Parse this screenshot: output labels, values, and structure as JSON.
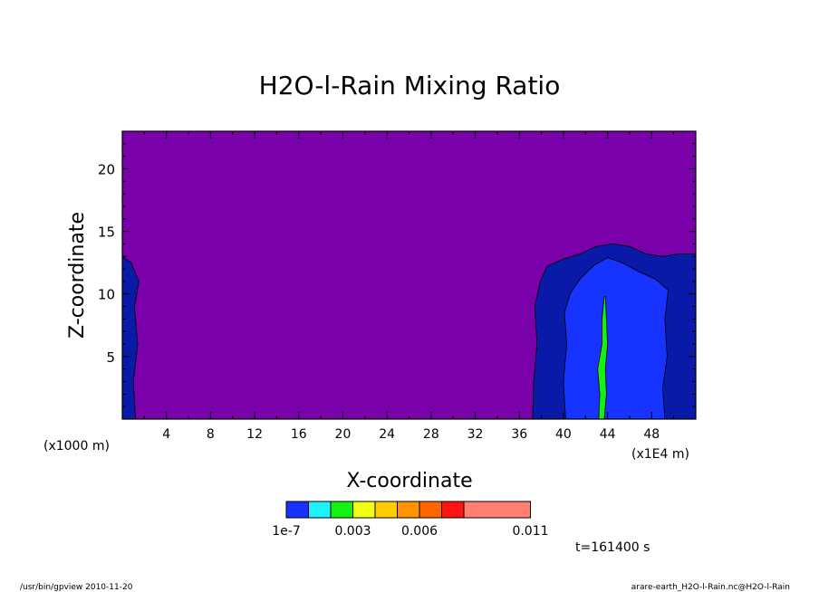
{
  "chart_data": {
    "type": "heatmap",
    "title": "H2O-l-Rain Mixing Ratio",
    "xlabel": "X-coordinate",
    "ylabel": "Z-coordinate",
    "x_unit_label": "(x1E4 m)",
    "y_unit_label": "(x1000 m)",
    "xlim": [
      0,
      52
    ],
    "ylim": [
      0,
      23
    ],
    "x_ticks": [
      4,
      8,
      12,
      16,
      20,
      24,
      28,
      32,
      36,
      40,
      44,
      48
    ],
    "y_ticks": [
      5,
      10,
      15,
      20
    ],
    "time_label": "t=161400 s",
    "colorbar": {
      "colors": [
        "#1733ff",
        "#1ff2ff",
        "#14f214",
        "#f2ff14",
        "#ffcc00",
        "#ff9400",
        "#ff6600",
        "#ff1414",
        "#ff8070"
      ],
      "labels": [
        "1e-7",
        "0.003",
        "0.006",
        "0.011"
      ]
    },
    "regions": [
      {
        "level": "background (<1e-7)",
        "color": "#7a00aa",
        "polygon": [
          [
            0,
            0
          ],
          [
            52,
            0
          ],
          [
            52,
            23
          ],
          [
            0,
            23
          ]
        ]
      },
      {
        "level": "near 1e-7 (left edge)",
        "color": "#0a1aa8",
        "polygon": [
          [
            0,
            0
          ],
          [
            1.2,
            0
          ],
          [
            1.0,
            3
          ],
          [
            1.4,
            6
          ],
          [
            1.1,
            9
          ],
          [
            1.5,
            11
          ],
          [
            0.8,
            12.5
          ],
          [
            0,
            13
          ]
        ]
      },
      {
        "level": "near 1e-7 (right cloud)",
        "color": "#0a1aa8",
        "polygon": [
          [
            37.2,
            0
          ],
          [
            37.3,
            3
          ],
          [
            37.6,
            6
          ],
          [
            37.4,
            9
          ],
          [
            37.9,
            11
          ],
          [
            38.5,
            12.2
          ],
          [
            40,
            12.8
          ],
          [
            41.5,
            13.2
          ],
          [
            43,
            13.8
          ],
          [
            44.5,
            14
          ],
          [
            46,
            13.8
          ],
          [
            47.5,
            13.2
          ],
          [
            49,
            13
          ],
          [
            50.5,
            13.2
          ],
          [
            52,
            13.2
          ],
          [
            52,
            0
          ]
        ]
      },
      {
        "level": "1e-7 to 0.003",
        "color": "#1733ff",
        "polygon": [
          [
            40.2,
            0
          ],
          [
            40,
            3
          ],
          [
            40.3,
            6
          ],
          [
            40.1,
            8.5
          ],
          [
            40.6,
            10
          ],
          [
            41.5,
            11.2
          ],
          [
            42.8,
            12.3
          ],
          [
            44,
            12.9
          ],
          [
            45.3,
            12.5
          ],
          [
            46.8,
            11.8
          ],
          [
            48.3,
            11.2
          ],
          [
            49.5,
            10.3
          ],
          [
            49.2,
            8
          ],
          [
            49.4,
            5
          ],
          [
            49,
            2.5
          ],
          [
            49.2,
            0
          ]
        ]
      },
      {
        "level": "0.003 to 0.006",
        "color": "#14f214",
        "polygon": [
          [
            43.2,
            0
          ],
          [
            43.3,
            2
          ],
          [
            43.1,
            4
          ],
          [
            43.5,
            6
          ],
          [
            43.5,
            8
          ],
          [
            43.7,
            9.8
          ],
          [
            43.8,
            9.8
          ],
          [
            43.9,
            8
          ],
          [
            44,
            6
          ],
          [
            43.8,
            4
          ],
          [
            43.9,
            2
          ],
          [
            43.7,
            0
          ]
        ]
      }
    ]
  },
  "footer": {
    "left": "/usr/bin/gpview   2010-11-20",
    "right": "arare-earth_H2O-l-Rain.nc@H2O-l-Rain"
  },
  "colors": {
    "background_region": "#7a00aa",
    "axis": "#000000"
  }
}
